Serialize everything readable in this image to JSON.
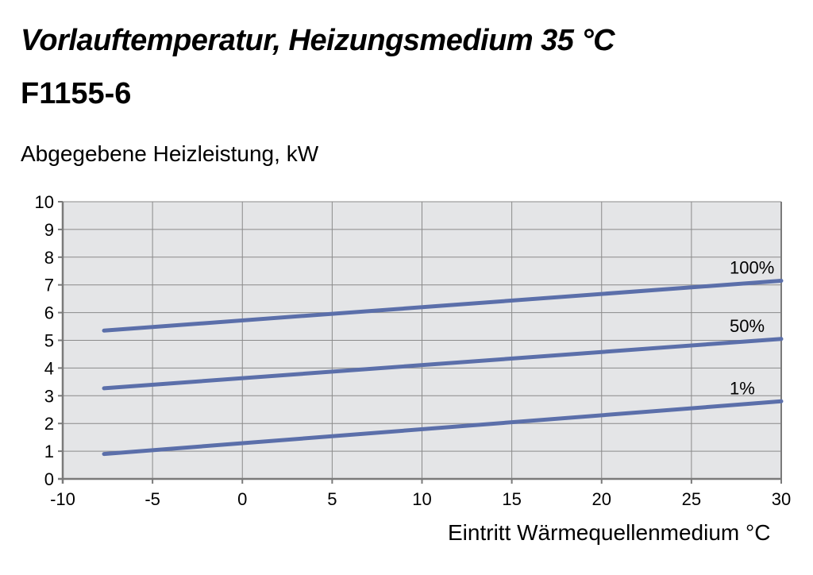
{
  "chart_data": {
    "type": "line",
    "title": "Vorlauftemperatur, Heizungsmedium 35 °C",
    "subtitle": "F1155-6",
    "ylabel": "Abgegebene Heizleistung, kW",
    "xlabel": "Eintritt Wärmequellenmedium °C",
    "xlim": [
      -10,
      30
    ],
    "ylim": [
      0,
      10
    ],
    "x_ticks": [
      -10,
      -5,
      0,
      5,
      10,
      15,
      20,
      25,
      30
    ],
    "y_ticks": [
      0,
      1,
      2,
      3,
      4,
      5,
      6,
      7,
      8,
      9,
      10
    ],
    "grid": true,
    "colors": {
      "line": "#5b6faa",
      "plot_bg": "#e4e5e7",
      "grid": "#8a8a8a",
      "axis": "#7a7a7a"
    },
    "series": [
      {
        "name": "100%",
        "x": [
          -7.7,
          30
        ],
        "y": [
          5.35,
          7.15
        ]
      },
      {
        "name": "50%",
        "x": [
          -7.7,
          30
        ],
        "y": [
          3.27,
          5.05
        ]
      },
      {
        "name": "1%",
        "x": [
          -7.7,
          30
        ],
        "y": [
          0.9,
          2.8
        ]
      }
    ]
  }
}
